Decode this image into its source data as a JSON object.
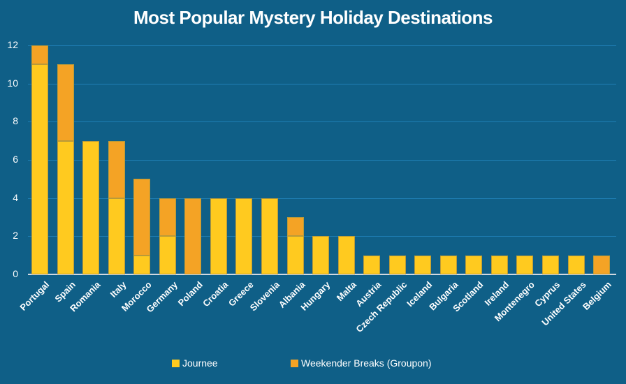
{
  "chart_data": {
    "type": "bar",
    "stacked": true,
    "title": "Most Popular Mystery Holiday Destinations",
    "xlabel": "",
    "ylabel": "",
    "ylim": [
      0,
      12
    ],
    "yticks": [
      0,
      2,
      4,
      6,
      8,
      10,
      12
    ],
    "grid": true,
    "legend_position": "bottom",
    "categories": [
      "Portugal",
      "Spain",
      "Romania",
      "Italy",
      "Morocco",
      "Germany",
      "Poland",
      "Croatia",
      "Greece",
      "Slovenia",
      "Albania",
      "Hungary",
      "Malta",
      "Austria",
      "Czech Republic",
      "Iceland",
      "Bulgaria",
      "Scotland",
      "Ireland",
      "Montenegro",
      "Cyprus",
      "United States",
      "Belgium"
    ],
    "series": [
      {
        "name": "Journee",
        "color": "#ffca1f",
        "values": [
          11,
          7,
          7,
          4,
          1,
          2,
          0,
          4,
          4,
          4,
          2,
          2,
          2,
          1,
          1,
          1,
          1,
          1,
          1,
          1,
          1,
          1,
          0
        ]
      },
      {
        "name": "Weekender Breaks (Groupon)",
        "color": "#f4a325",
        "values": [
          1,
          4,
          0,
          3,
          4,
          2,
          4,
          0,
          0,
          0,
          1,
          0,
          0,
          0,
          0,
          0,
          0,
          0,
          0,
          0,
          0,
          0,
          1
        ]
      }
    ]
  },
  "colors": {
    "background": "#0f5f87",
    "grid": "#1f7fb5",
    "journee": "#ffca1f",
    "weekender": "#f4a325"
  }
}
